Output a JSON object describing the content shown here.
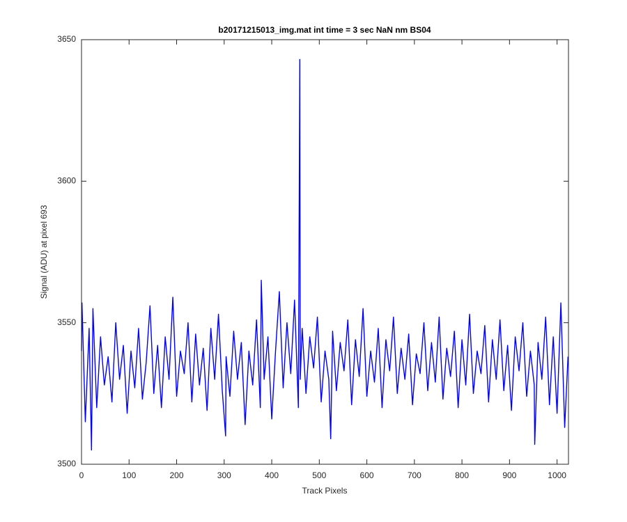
{
  "chart_data": {
    "type": "line",
    "title": "b20171215013_img.mat int time = 3 sec  NaN nm BS04",
    "xlabel": "Track Pixels",
    "ylabel": "Signal (ADU) at pixel 693",
    "x": [
      0,
      1,
      8,
      16,
      21,
      24,
      32,
      40,
      48,
      56,
      64,
      72,
      80,
      88,
      96,
      104,
      112,
      120,
      128,
      136,
      144,
      152,
      160,
      168,
      176,
      184,
      192,
      200,
      208,
      216,
      224,
      232,
      240,
      248,
      256,
      264,
      272,
      280,
      288,
      296,
      303,
      304,
      312,
      320,
      328,
      336,
      344,
      352,
      360,
      368,
      376,
      378,
      384,
      392,
      400,
      408,
      416,
      424,
      432,
      440,
      448,
      456,
      459,
      460,
      464,
      472,
      480,
      488,
      496,
      504,
      512,
      520,
      524,
      528,
      536,
      544,
      552,
      560,
      568,
      576,
      584,
      592,
      600,
      608,
      616,
      624,
      632,
      640,
      648,
      656,
      664,
      672,
      680,
      688,
      696,
      704,
      712,
      720,
      728,
      736,
      744,
      752,
      760,
      768,
      776,
      784,
      792,
      800,
      808,
      816,
      824,
      832,
      840,
      848,
      856,
      864,
      872,
      880,
      888,
      896,
      904,
      912,
      920,
      928,
      936,
      944,
      952,
      953,
      960,
      968,
      976,
      984,
      992,
      1000,
      1008,
      1016,
      1023
    ],
    "series": [
      {
        "color": "#0000ff",
        "values": [
          3540,
          3557,
          3515,
          3548,
          3505,
          3555,
          3520,
          3545,
          3528,
          3538,
          3522,
          3550,
          3530,
          3542,
          3518,
          3540,
          3527,
          3548,
          3523,
          3536,
          3556,
          3525,
          3542,
          3520,
          3545,
          3530,
          3559,
          3524,
          3540,
          3532,
          3550,
          3522,
          3546,
          3528,
          3541,
          3519,
          3548,
          3530,
          3553,
          3526,
          3510,
          3538,
          3524,
          3547,
          3530,
          3543,
          3514,
          3540,
          3528,
          3551,
          3520,
          3565,
          3530,
          3545,
          3516,
          3540,
          3561,
          3527,
          3550,
          3532,
          3558,
          3520,
          3643,
          3530,
          3548,
          3525,
          3545,
          3534,
          3552,
          3522,
          3540,
          3530,
          3509,
          3547,
          3526,
          3543,
          3533,
          3551,
          3521,
          3544,
          3531,
          3555,
          3524,
          3540,
          3529,
          3548,
          3520,
          3544,
          3533,
          3552,
          3525,
          3541,
          3530,
          3546,
          3521,
          3539,
          3532,
          3550,
          3526,
          3543,
          3529,
          3552,
          3523,
          3541,
          3531,
          3547,
          3520,
          3544,
          3528,
          3553,
          3525,
          3540,
          3532,
          3549,
          3522,
          3544,
          3530,
          3551,
          3526,
          3542,
          3519,
          3545,
          3533,
          3550,
          3524,
          3540,
          3528,
          3507,
          3543,
          3530,
          3552,
          3521,
          3545,
          3518,
          3557,
          3513,
          3538
        ]
      }
    ],
    "xlim": [
      0,
      1024
    ],
    "ylim": [
      3500,
      3650
    ],
    "xticks": [
      0,
      100,
      200,
      300,
      400,
      500,
      600,
      700,
      800,
      900,
      1000
    ],
    "yticks": [
      3500,
      3550,
      3600,
      3650
    ]
  }
}
